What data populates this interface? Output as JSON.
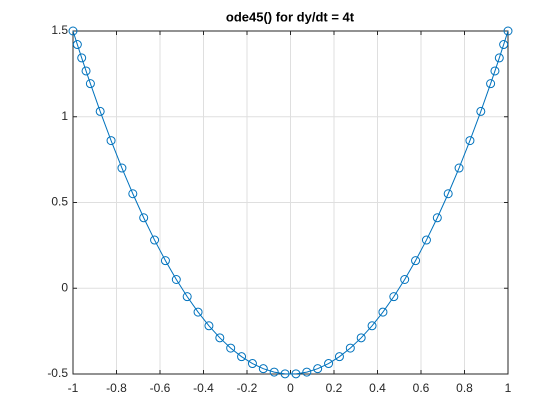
{
  "chart_data": {
    "type": "line",
    "title": "ode45() for dy/dt = 4t",
    "x": [
      -1,
      -0.98,
      -0.96,
      -0.94,
      -0.92,
      -0.875,
      -0.825,
      -0.775,
      -0.725,
      -0.675,
      -0.625,
      -0.575,
      -0.525,
      -0.475,
      -0.425,
      -0.375,
      -0.325,
      -0.275,
      -0.225,
      -0.175,
      -0.125,
      -0.075,
      -0.025,
      0.025,
      0.075,
      0.125,
      0.175,
      0.225,
      0.275,
      0.325,
      0.375,
      0.425,
      0.475,
      0.525,
      0.575,
      0.625,
      0.675,
      0.725,
      0.775,
      0.825,
      0.875,
      0.92,
      0.94,
      0.96,
      0.98,
      1
    ],
    "series": [
      {
        "color": "#0072bd",
        "marker": "circle",
        "values": [
          1.5,
          1.421,
          1.343,
          1.267,
          1.193,
          1.031,
          0.861,
          0.701,
          0.551,
          0.411,
          0.281,
          0.161,
          0.051,
          -0.049,
          -0.139,
          -0.219,
          -0.289,
          -0.349,
          -0.399,
          -0.439,
          -0.469,
          -0.489,
          -0.499,
          -0.499,
          -0.489,
          -0.469,
          -0.439,
          -0.399,
          -0.349,
          -0.289,
          -0.219,
          -0.139,
          -0.049,
          0.051,
          0.161,
          0.281,
          0.411,
          0.551,
          0.701,
          0.861,
          1.031,
          1.193,
          1.267,
          1.343,
          1.421,
          1.5
        ]
      }
    ],
    "xlim": [
      -1,
      1
    ],
    "xticks": [
      -1,
      -0.8,
      -0.6,
      -0.4,
      -0.2,
      0,
      0.2,
      0.4,
      0.6,
      0.8,
      1
    ],
    "ylim": [
      -0.5,
      1.5
    ],
    "yticks": [
      -0.5,
      0,
      0.5,
      1,
      1.5
    ],
    "grid": true
  }
}
